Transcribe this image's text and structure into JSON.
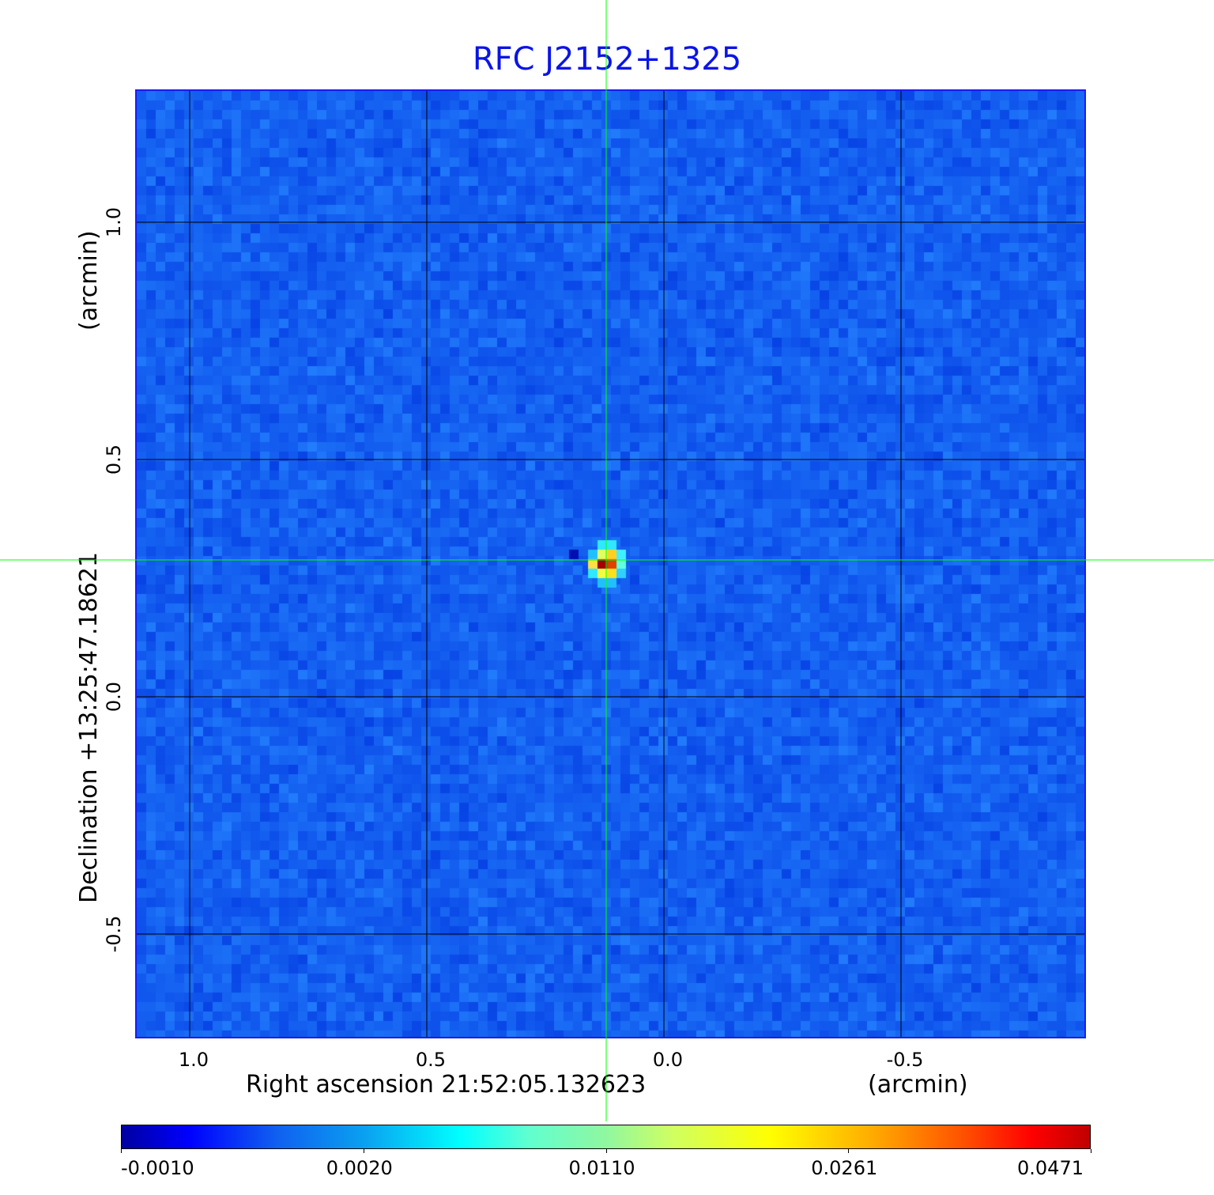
{
  "chart_data": {
    "type": "heatmap",
    "title": "RFC J2152+1325",
    "xlabel": "Right ascension  21:52:05.132623",
    "xunit": "(arcmin)",
    "ylabel": "Declination  +13:25:47.18621",
    "yunit": "(arcmin)",
    "xlim": [
      1.115,
      -0.89
    ],
    "ylim": [
      -0.72,
      1.28
    ],
    "xticks": [
      "1.0",
      "0.5",
      "0.0",
      "-0.5"
    ],
    "xtick_values": [
      1.0,
      0.5,
      0.0,
      -0.5
    ],
    "yticks": [
      "1.0",
      "0.5",
      "0.0",
      "-0.5"
    ],
    "ytick_values": [
      1.0,
      0.5,
      0.0,
      -0.5
    ],
    "grid": true,
    "colormap": "jet",
    "colorbar": {
      "ticks": [
        "-0.0010",
        "0.0020",
        "0.0110",
        "0.0261",
        "0.0471"
      ],
      "range": [
        -0.001,
        0.0471
      ]
    },
    "source_peak": {
      "x": 0.12,
      "y": 0.29,
      "value": 0.0471
    },
    "crosshair": {
      "x": 0.12,
      "y": 0.29,
      "color": "#00ff00"
    },
    "grid_color": "#000000",
    "frame_color": "#1a1aff",
    "title_color": "#0a14e6"
  }
}
